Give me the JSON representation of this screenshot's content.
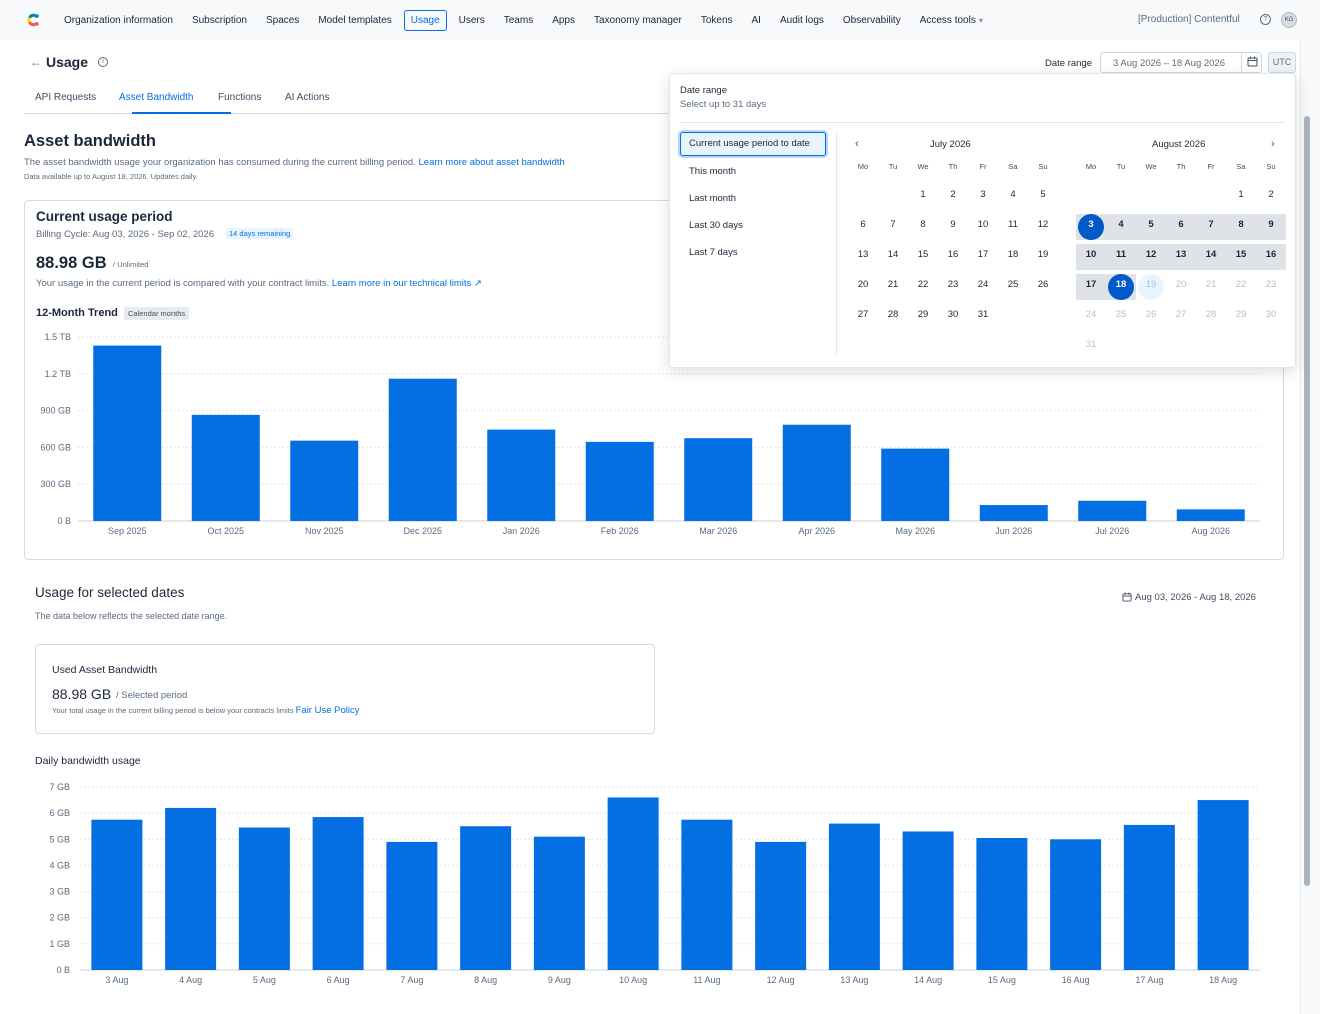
{
  "nav": {
    "items": [
      "Organization information",
      "Subscription",
      "Spaces",
      "Model templates",
      "Usage",
      "Users",
      "Teams",
      "Apps",
      "Taxonomy manager",
      "Tokens",
      "AI",
      "Audit logs",
      "Observability",
      "Access tools"
    ],
    "active": "Usage",
    "org": "[Production] Contentful",
    "avatar_initials": "KG"
  },
  "page": {
    "title": "Usage",
    "date_range_label": "Date range",
    "date_range_value": "3 Aug 2026 – 18 Aug 2026",
    "utc": "UTC"
  },
  "tabs": [
    "API Requests",
    "Asset Bandwidth",
    "Functions",
    "AI Actions"
  ],
  "active_tab": "Asset Bandwidth",
  "asset": {
    "title": "Asset bandwidth",
    "desc": "The asset bandwidth usage your organization has consumed during the current billing period.",
    "desc_link": "Learn more about asset bandwidth",
    "note": "Data available up to August 18, 2026. Updates daily."
  },
  "current": {
    "title": "Current usage period",
    "billing": "Billing Cycle: Aug 03, 2026 - Sep 02, 2026",
    "badge": "14 days remaining",
    "value": "88.98 GB",
    "unlimited": "/ Unlimited",
    "desc": "Your usage in the current period is compared with your contract limits.",
    "desc_link": "Learn more in our technical limits",
    "trend_title": "12-Month Trend",
    "trend_badge": "Calendar months"
  },
  "selected": {
    "title": "Usage for selected dates",
    "desc": "The data below reflects the selected date range.",
    "range": "Aug 03, 2026 - Aug 18, 2026",
    "card_title": "Used Asset Bandwidth",
    "card_value": "88.98 GB",
    "card_period": "/ Selected period",
    "card_note": "Your total usage in the current billing period is below your contracts limits",
    "card_link": "Fair Use Policy",
    "daily_title": "Daily bandwidth usage"
  },
  "picker": {
    "title": "Date range",
    "subtitle": "Select up to 31 days",
    "presets": [
      "Current usage period to date",
      "This month",
      "Last month",
      "Last 30 days",
      "Last 7 days"
    ],
    "active_preset": "Current usage period to date",
    "weekdays": [
      "Mo",
      "Tu",
      "We",
      "Th",
      "Fr",
      "Sa",
      "Su"
    ],
    "left_month": "July 2026",
    "right_month": "August 2026",
    "selected_start": 3,
    "selected_end": 18,
    "hover_day": 19,
    "available_until": 18
  },
  "colors": {
    "accent": "#036fe3",
    "bar": "#036fe3",
    "selected": "#0059c8"
  },
  "chart_data": [
    {
      "type": "bar",
      "title": "12-Month Trend",
      "categories": [
        "Sep 2025",
        "Oct 2025",
        "Nov 2025",
        "Dec 2025",
        "Jan 2026",
        "Feb 2026",
        "Mar 2026",
        "Apr 2026",
        "May 2026",
        "Jun 2026",
        "Jul 2026",
        "Aug 2026"
      ],
      "values": [
        1430,
        865,
        655,
        1160,
        745,
        645,
        675,
        785,
        590,
        130,
        165,
        95
      ],
      "unit": "GB",
      "ytick_labels": [
        "0 B",
        "300 GB",
        "600 GB",
        "900 GB",
        "1.2 TB",
        "1.5 TB"
      ],
      "yticks": [
        0,
        300,
        600,
        900,
        1200,
        1500
      ],
      "ylim": [
        0,
        1500
      ],
      "grid": true
    },
    {
      "type": "bar",
      "title": "Daily bandwidth usage",
      "categories": [
        "3 Aug",
        "4 Aug",
        "5 Aug",
        "6 Aug",
        "7 Aug",
        "8 Aug",
        "9 Aug",
        "10 Aug",
        "11 Aug",
        "12 Aug",
        "13 Aug",
        "14 Aug",
        "15 Aug",
        "16 Aug",
        "17 Aug",
        "18 Aug"
      ],
      "values": [
        5.75,
        6.2,
        5.45,
        5.85,
        4.9,
        5.5,
        5.1,
        6.6,
        5.75,
        4.9,
        5.6,
        5.3,
        5.05,
        5.0,
        5.55,
        6.5
      ],
      "unit": "GB",
      "ytick_labels": [
        "0 B",
        "1 GB",
        "2 GB",
        "3 GB",
        "4 GB",
        "5 GB",
        "6 GB",
        "7 GB"
      ],
      "yticks": [
        0,
        1,
        2,
        3,
        4,
        5,
        6,
        7
      ],
      "ylim": [
        0,
        7
      ],
      "grid": true
    }
  ]
}
